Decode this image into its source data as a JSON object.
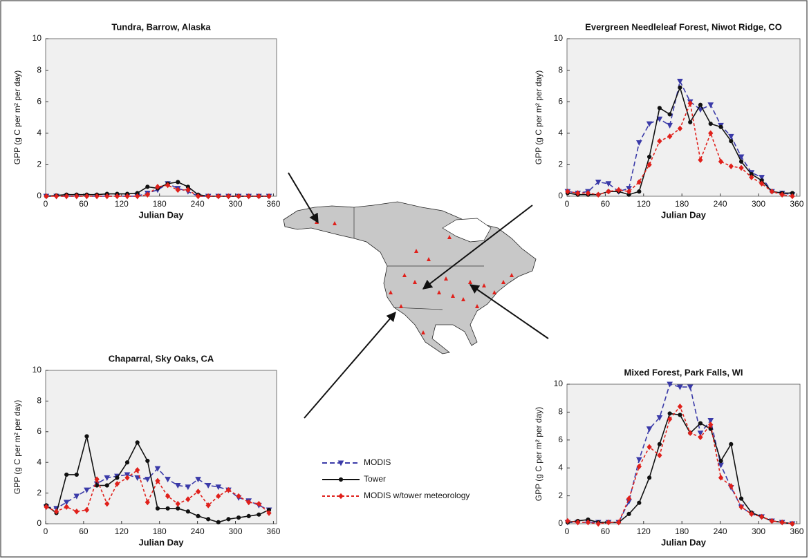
{
  "chart_data": [
    {
      "type": "line",
      "title": "Tundra, Barrow, Alaska",
      "x_label": "Julian Day",
      "y_label": "GPP (g C per m² per day)",
      "x": [
        1,
        17,
        33,
        49,
        65,
        81,
        97,
        113,
        129,
        145,
        161,
        177,
        193,
        209,
        225,
        241,
        257,
        273,
        289,
        305,
        321,
        337,
        353
      ],
      "xlim": [
        0,
        365
      ],
      "xticks": [
        0,
        60,
        120,
        180,
        240,
        300,
        360
      ],
      "ylim": [
        0,
        10
      ],
      "yticks": [
        0,
        2,
        4,
        6,
        8,
        10
      ],
      "series": [
        {
          "name": "MODIS",
          "color": "#3a3aa8",
          "marker": "triangle",
          "dash": true,
          "values": [
            0,
            0,
            0,
            0,
            0,
            0,
            0,
            0,
            0,
            0,
            0.2,
            0.4,
            0.8,
            0.5,
            0.3,
            0,
            0,
            0,
            0,
            0,
            0,
            0,
            0
          ]
        },
        {
          "name": "Tower",
          "color": "#111111",
          "marker": "circle",
          "dash": false,
          "values": [
            0,
            0.05,
            0.1,
            0.1,
            0.1,
            0.1,
            0.15,
            0.15,
            0.15,
            0.2,
            0.6,
            0.5,
            0.8,
            0.9,
            0.6,
            0.1,
            0,
            0,
            0,
            0,
            0,
            0,
            0
          ]
        },
        {
          "name": "MODIS w/tower meteorology",
          "color": "#e0201b",
          "marker": "diamond",
          "dash": true,
          "values": [
            0,
            0,
            0,
            0,
            0,
            0,
            0,
            0,
            0,
            0,
            0.1,
            0.6,
            0.7,
            0.4,
            0.4,
            0,
            0,
            0,
            0,
            0,
            0,
            0,
            0
          ]
        }
      ]
    },
    {
      "type": "line",
      "title": "Evergreen Needleleaf Forest, Niwot Ridge, CO",
      "x_label": "Julian Day",
      "y_label": "GPP (g C per m² per day)",
      "x": [
        1,
        17,
        33,
        49,
        65,
        81,
        97,
        113,
        129,
        145,
        161,
        177,
        193,
        209,
        225,
        241,
        257,
        273,
        289,
        305,
        321,
        337,
        353
      ],
      "xlim": [
        0,
        365
      ],
      "xticks": [
        0,
        60,
        120,
        180,
        240,
        300,
        360
      ],
      "ylim": [
        0,
        10
      ],
      "yticks": [
        0,
        2,
        4,
        6,
        8,
        10
      ],
      "series": [
        {
          "color": "#3a3aa8",
          "marker": "triangle",
          "dash": true,
          "values": [
            0.3,
            0.2,
            0.3,
            0.9,
            0.8,
            0.3,
            0.5,
            3.4,
            4.6,
            4.9,
            4.5,
            7.3,
            6.0,
            5.5,
            5.8,
            4.5,
            3.8,
            2.5,
            1.5,
            1.2,
            0.3,
            0.2,
            0.1
          ]
        },
        {
          "color": "#111111",
          "marker": "circle",
          "dash": false,
          "values": [
            0.2,
            0.1,
            0.1,
            0.1,
            0.3,
            0.3,
            0.1,
            0.3,
            2.5,
            5.6,
            5.2,
            6.9,
            4.7,
            5.8,
            4.6,
            4.4,
            3.5,
            2.2,
            1.4,
            1.0,
            0.3,
            0.2,
            0.2
          ]
        },
        {
          "color": "#e0201b",
          "marker": "diamond",
          "dash": true,
          "values": [
            0.3,
            0.2,
            0.2,
            0.1,
            0.3,
            0.4,
            0.3,
            0.9,
            2.0,
            3.5,
            3.8,
            4.3,
            5.9,
            2.3,
            4.0,
            2.2,
            1.9,
            1.8,
            1.2,
            0.8,
            0.3,
            0.1,
            0.0
          ]
        }
      ]
    },
    {
      "type": "line",
      "title": "Chaparral, Sky Oaks, CA",
      "x_label": "Julian Day",
      "y_label": "GPP (g C per m² per day)",
      "x": [
        1,
        17,
        33,
        49,
        65,
        81,
        97,
        113,
        129,
        145,
        161,
        177,
        193,
        209,
        225,
        241,
        257,
        273,
        289,
        305,
        321,
        337,
        353
      ],
      "xlim": [
        0,
        365
      ],
      "xticks": [
        0,
        60,
        120,
        180,
        240,
        300,
        360
      ],
      "ylim": [
        0,
        10
      ],
      "yticks": [
        0,
        2,
        4,
        6,
        8,
        10
      ],
      "series": [
        {
          "color": "#3a3aa8",
          "marker": "triangle",
          "dash": true,
          "values": [
            1.1,
            1.0,
            1.4,
            1.8,
            2.2,
            2.6,
            3.0,
            3.1,
            3.2,
            3.0,
            2.9,
            3.6,
            2.9,
            2.5,
            2.4,
            2.9,
            2.5,
            2.4,
            2.2,
            1.7,
            1.5,
            1.2,
            0.9
          ]
        },
        {
          "color": "#111111",
          "marker": "circle",
          "dash": false,
          "values": [
            1.2,
            0.7,
            3.2,
            3.2,
            5.7,
            2.5,
            2.5,
            3.0,
            4.0,
            5.3,
            4.1,
            1.0,
            1.0,
            1.0,
            0.8,
            0.5,
            0.3,
            0.1,
            0.3,
            0.4,
            0.5,
            0.6,
            0.9
          ]
        },
        {
          "color": "#e0201b",
          "marker": "diamond",
          "dash": true,
          "values": [
            1.1,
            0.8,
            1.1,
            0.8,
            0.9,
            2.9,
            1.3,
            2.6,
            3.0,
            3.5,
            1.4,
            2.8,
            1.8,
            1.3,
            1.6,
            2.1,
            1.2,
            1.8,
            2.2,
            1.8,
            1.4,
            1.3,
            0.7
          ]
        }
      ]
    },
    {
      "type": "line",
      "title": "Mixed Forest, Park Falls, WI",
      "x_label": "Julian Day",
      "y_label": "GPP (g C per m² per day)",
      "x": [
        1,
        17,
        33,
        49,
        65,
        81,
        97,
        113,
        129,
        145,
        161,
        177,
        193,
        209,
        225,
        241,
        257,
        273,
        289,
        305,
        321,
        337,
        353
      ],
      "xlim": [
        0,
        365
      ],
      "xticks": [
        0,
        60,
        120,
        180,
        240,
        300,
        360
      ],
      "ylim": [
        0,
        10
      ],
      "yticks": [
        0,
        2,
        4,
        6,
        8,
        10
      ],
      "series": [
        {
          "color": "#3a3aa8",
          "marker": "triangle",
          "dash": true,
          "values": [
            0.1,
            0.1,
            0.1,
            0.1,
            0.1,
            0.1,
            1.6,
            4.6,
            6.8,
            7.6,
            10.0,
            9.8,
            9.8,
            6.5,
            7.4,
            4.2,
            2.6,
            1.2,
            0.7,
            0.5,
            0.2,
            0.1,
            0.0
          ]
        },
        {
          "color": "#111111",
          "marker": "circle",
          "dash": false,
          "values": [
            0.1,
            0.2,
            0.3,
            0.1,
            0.1,
            0.1,
            0.7,
            1.5,
            3.3,
            5.7,
            7.9,
            7.8,
            6.5,
            7.2,
            6.8,
            4.5,
            5.7,
            1.8,
            0.8,
            0.5,
            0.2,
            0.1,
            0.0
          ]
        },
        {
          "color": "#e0201b",
          "marker": "diamond",
          "dash": true,
          "values": [
            0.2,
            0.1,
            0.1,
            0.0,
            0.1,
            0.1,
            1.8,
            4.1,
            5.5,
            4.9,
            7.5,
            8.4,
            6.5,
            6.2,
            7.1,
            3.3,
            2.7,
            1.2,
            0.7,
            0.5,
            0.2,
            0.1,
            0.0
          ]
        }
      ]
    }
  ]
}
